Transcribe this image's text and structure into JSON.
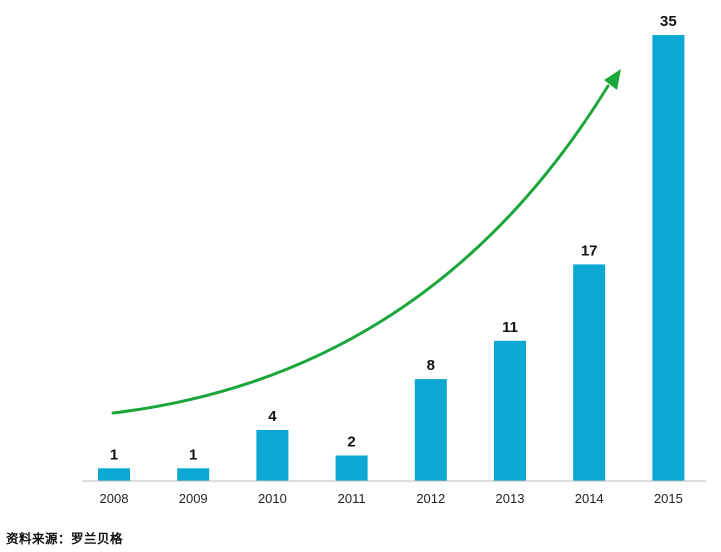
{
  "chart_data": {
    "type": "bar",
    "categories": [
      "2008",
      "2009",
      "2010",
      "2011",
      "2012",
      "2013",
      "2014",
      "2015"
    ],
    "values": [
      1,
      1,
      4,
      2,
      8,
      11,
      17,
      35
    ],
    "title": "",
    "xlabel": "",
    "ylabel": "",
    "ylim": [
      0,
      35
    ],
    "bar_color": "#0aa8d2",
    "trend_arrow_color": "#1aa63a",
    "data_labels": true,
    "grid": false,
    "legend": "none"
  },
  "source": {
    "text": "资料来源：罗兰贝格"
  },
  "colors": {
    "bar": "#0aa8d2",
    "arrow": "#1aa63a",
    "axis": "#bbbbbb",
    "label_text": "#111111"
  }
}
